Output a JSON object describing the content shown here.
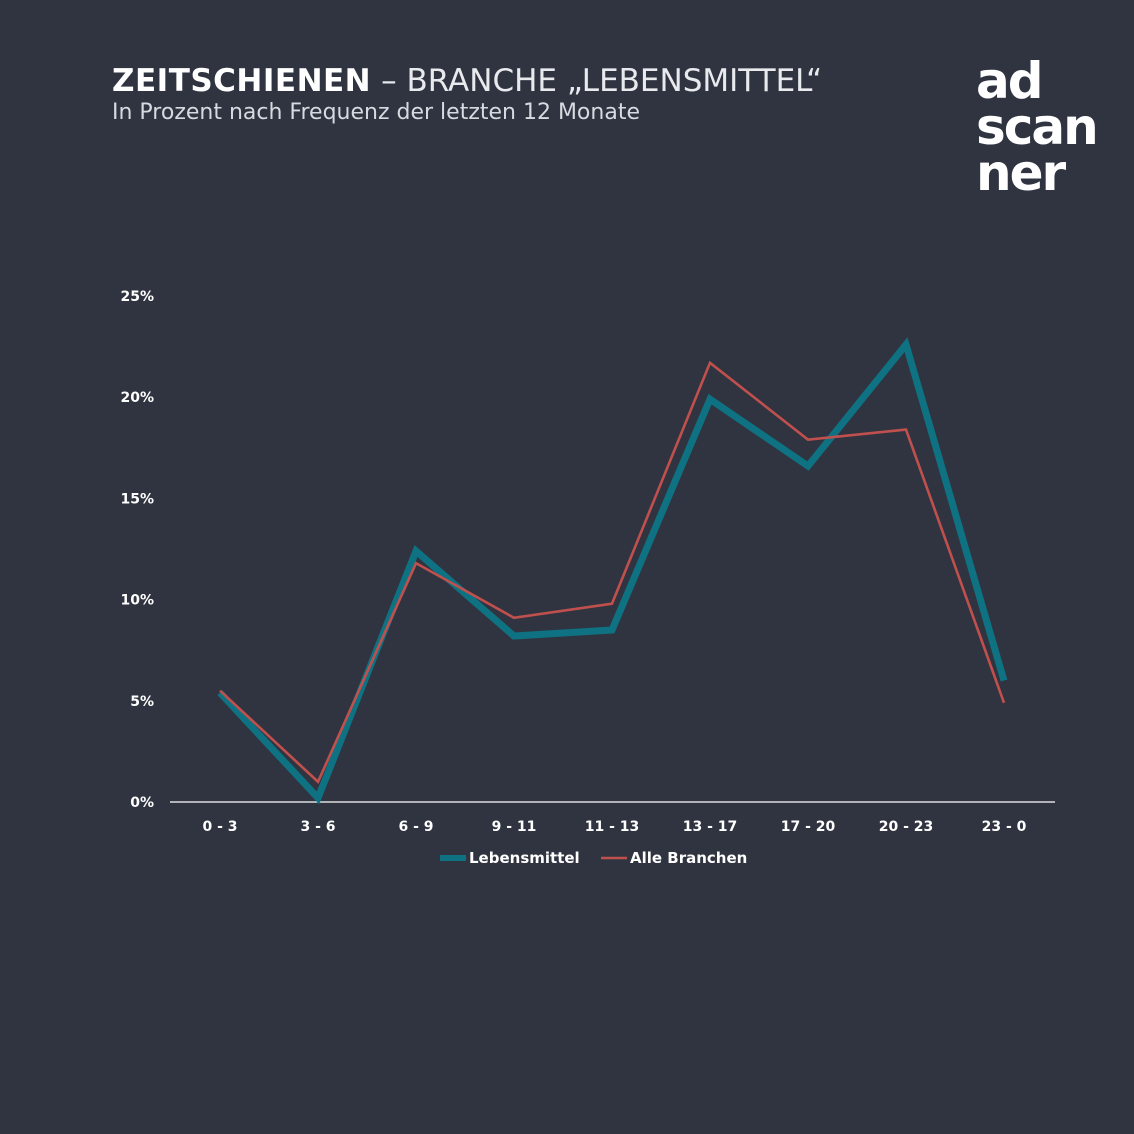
{
  "header": {
    "title_bold": "ZEITSCHIENEN",
    "title_rest": "– BRANCHE „LEBENSMITTEL“",
    "subtitle": "In Prozent nach Frequenz der letzten 12 Monate"
  },
  "logo": {
    "line1": "ad",
    "line2": "scan",
    "line3": "ner"
  },
  "colors": {
    "background": "#2f3440",
    "lebensmittel": "#0e7282",
    "alle_branchen": "#c0504d",
    "axis": "#ffffff"
  },
  "chart_data": {
    "type": "line",
    "categories": [
      "0 - 3",
      "3 - 6",
      "6 - 9",
      "9 - 11",
      "11 - 13",
      "13 - 17",
      "17 - 20",
      "20 - 23",
      "23 - 0"
    ],
    "series": [
      {
        "name": "Lebensmittel",
        "values": [
          5.4,
          0.2,
          12.4,
          8.2,
          8.5,
          19.9,
          16.6,
          22.6,
          6.0
        ]
      },
      {
        "name": "Alle Branchen",
        "values": [
          5.5,
          1.0,
          11.8,
          9.1,
          9.8,
          21.7,
          17.9,
          18.4,
          4.9
        ]
      }
    ],
    "yticks": [
      "0%",
      "5%",
      "10%",
      "15%",
      "20%",
      "25%"
    ],
    "ylim": [
      0,
      25
    ],
    "grid": false,
    "legend": "bottom-center"
  }
}
